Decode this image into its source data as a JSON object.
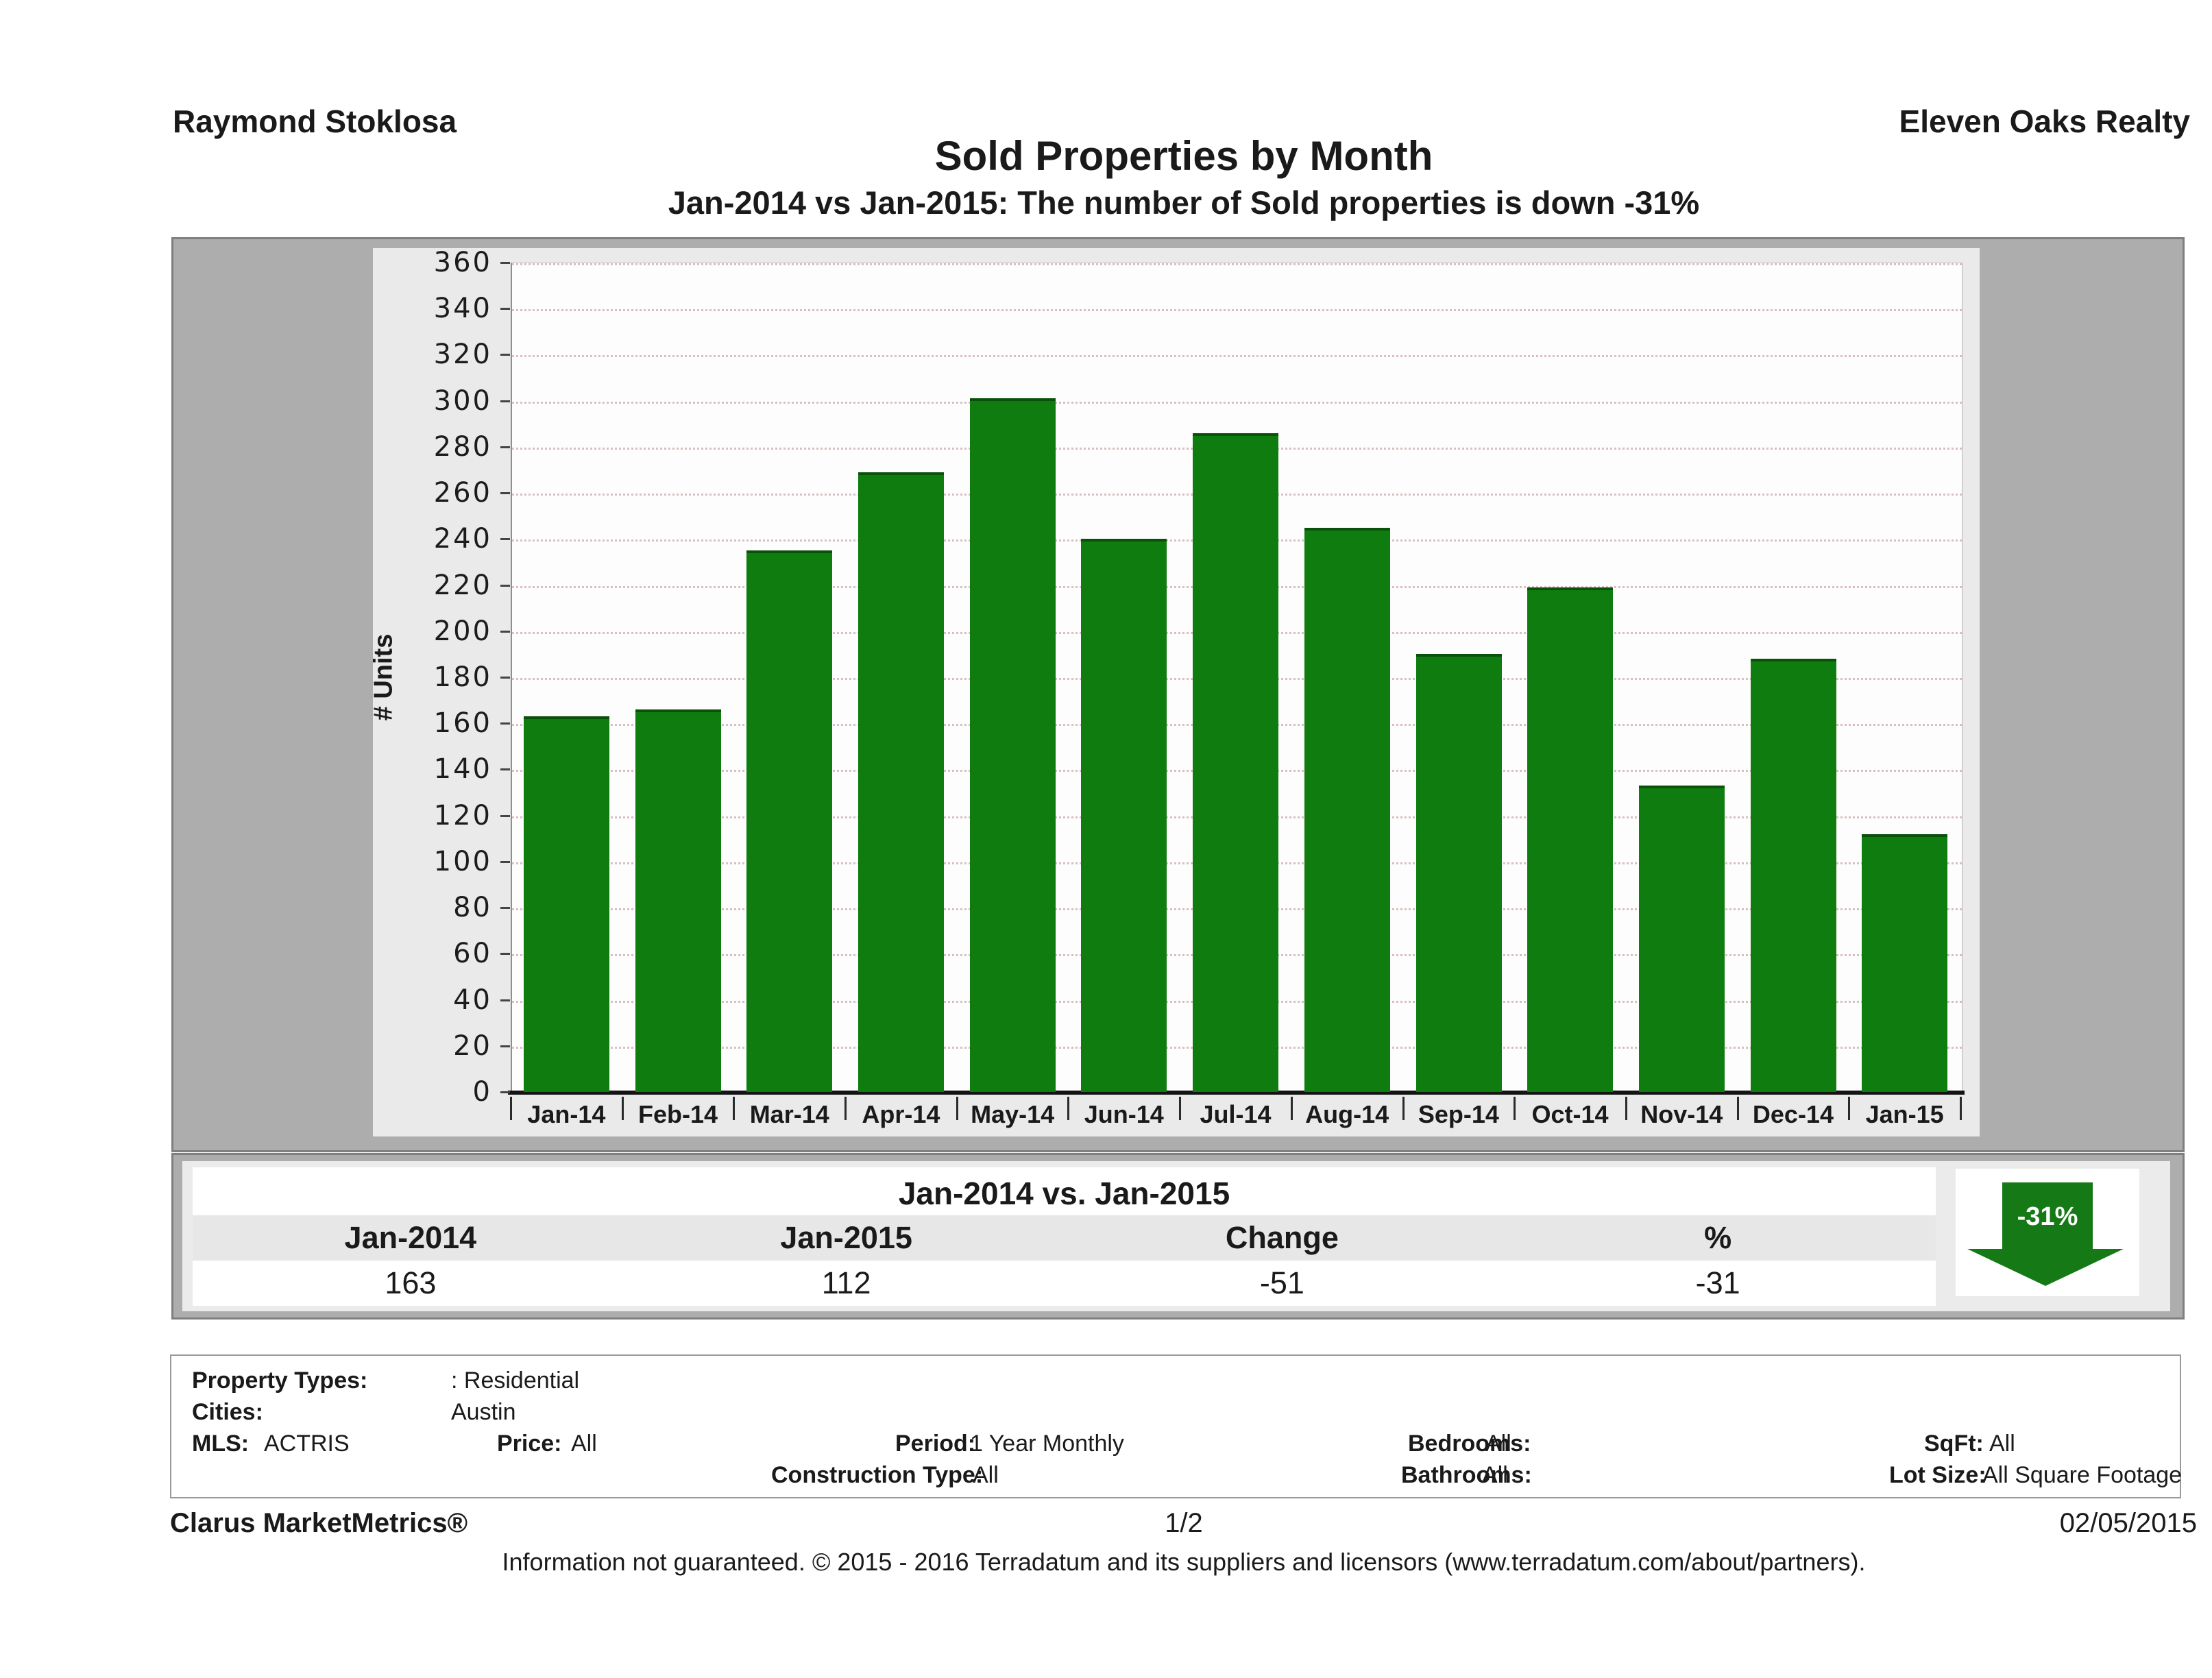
{
  "header": {
    "agent": "Raymond Stoklosa",
    "company": "Eleven Oaks Realty"
  },
  "title": "Sold Properties by Month",
  "subtitle": "Jan-2014 vs Jan-2015: The number of Sold  properties is down -31%",
  "chart_data": {
    "type": "bar",
    "categories": [
      "Jan-14",
      "Feb-14",
      "Mar-14",
      "Apr-14",
      "May-14",
      "Jun-14",
      "Jul-14",
      "Aug-14",
      "Sep-14",
      "Oct-14",
      "Nov-14",
      "Dec-14",
      "Jan-15"
    ],
    "values": [
      163,
      166,
      235,
      269,
      301,
      240,
      286,
      245,
      190,
      219,
      133,
      188,
      112
    ],
    "title": "Sold Properties by Month",
    "xlabel": "",
    "ylabel": "# Units",
    "ylim": [
      0,
      360
    ],
    "ytick_step": 20,
    "grid": "horizontal dotted",
    "legend_position": "none",
    "bar_color": "#0e7c0e"
  },
  "comparison": {
    "title": "Jan-2014 vs. Jan-2015",
    "columns": [
      "Jan-2014",
      "Jan-2015",
      "Change",
      "%"
    ],
    "values": [
      "163",
      "112",
      "-51",
      "-31"
    ],
    "arrow_label": "-31%",
    "arrow_direction": "down",
    "arrow_color": "#157a15"
  },
  "filters": {
    "property_types_label": "Property Types:",
    "property_types_value": ": Residential",
    "cities_label": "Cities:",
    "cities_value": "Austin",
    "mls_label": "MLS:",
    "mls_value": "ACTRIS",
    "price_label": "Price:",
    "price_value": "All",
    "period_label": "Period:",
    "period_value": "1 Year Monthly",
    "bedrooms_label": "Bedrooms:",
    "bedrooms_value": "All",
    "sqft_label": "SqFt:",
    "sqft_value": "All",
    "construction_label": "Construction Type:",
    "construction_value": "All",
    "bathrooms_label": "Bathrooms:",
    "bathrooms_value": "All",
    "lot_size_label": "Lot Size:",
    "lot_size_value": "All Square Footage"
  },
  "footer": {
    "brand": "Clarus MarketMetrics®",
    "page": "1/2",
    "date": "02/05/2015",
    "disclaimer": "Information not guaranteed. © 2015 - 2016 Terradatum and its suppliers and licensors (www.terradatum.com/about/partners)."
  }
}
